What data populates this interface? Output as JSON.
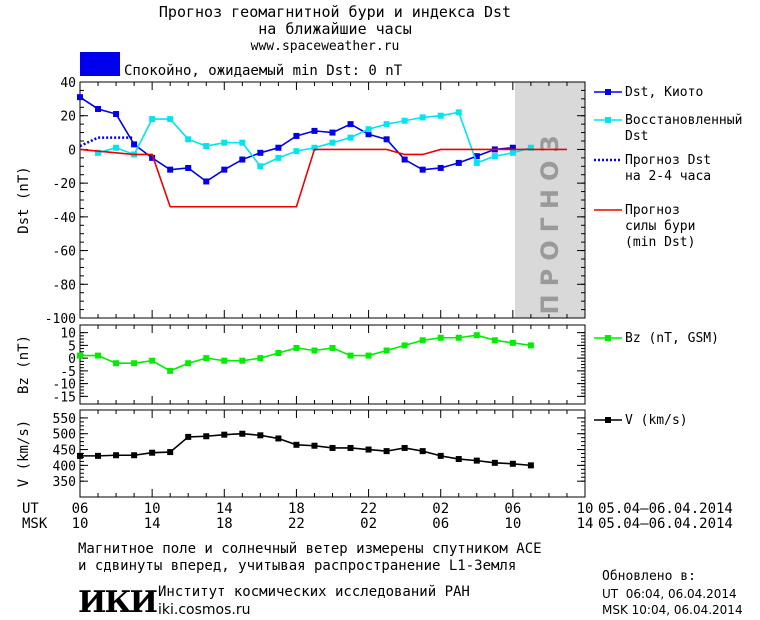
{
  "header": {
    "title_line1": "Прогноз геомагнитной бури и индекса Dst",
    "title_line2": "на ближайшие часы",
    "url": "www.spaceweather.ru",
    "status_text": "Спокойно, ожидаемый min Dst: 0 nT",
    "status_color": "#0000ee"
  },
  "forecast_label": "ПРОГНОЗ",
  "footer": {
    "note_line1": "Магнитное поле и солнечный ветер измерены спутником ACE",
    "note_line2": "и сдвинуты вперед, учитывая распространение L1-Земля",
    "logo_text": "ИКИ",
    "institute_name": "Институт космических исследований РАН",
    "institute_url": "iki.cosmos.ru",
    "updated_label": "Обновлено в:",
    "updated_ut": "UT  06:04, 06.04.2014",
    "updated_msk": "MSK 10:04, 06.04.2014"
  },
  "chart_data": [
    {
      "type": "line",
      "ylabel": "Dst (nT)",
      "ylim": [
        -100,
        40
      ],
      "yticks": [
        40,
        20,
        0,
        -20,
        -40,
        -60,
        -80,
        -100
      ],
      "grid": false,
      "legend_position": "right",
      "series": [
        {
          "name": "Dst, Киото",
          "color": "#0000ee",
          "marker": "square",
          "x": [
            6,
            7,
            8,
            9,
            10,
            11,
            12,
            13,
            14,
            15,
            16,
            17,
            18,
            19,
            20,
            21,
            22,
            23,
            0,
            1,
            2,
            3,
            4,
            5,
            6
          ],
          "values": [
            31,
            24,
            21,
            3,
            -5,
            -12,
            -11,
            -19,
            -12,
            -6,
            -2,
            1,
            8,
            11,
            10,
            15,
            9,
            6,
            -6,
            -12,
            -11,
            -8,
            -4,
            0,
            1
          ]
        },
        {
          "name": "Восстановленный Dst",
          "color": "#00e5ee",
          "marker": "square",
          "x": [
            7,
            8,
            9,
            10,
            11,
            12,
            13,
            14,
            15,
            16,
            17,
            18,
            19,
            20,
            21,
            22,
            23,
            0,
            1,
            2,
            3,
            4,
            5,
            6,
            7
          ],
          "values": [
            -2,
            1,
            -3,
            18,
            18,
            6,
            2,
            4,
            4,
            -10,
            -5,
            -1,
            1,
            4,
            7,
            12,
            15,
            17,
            19,
            20,
            22,
            -8,
            -4,
            -2,
            1
          ]
        },
        {
          "name": "Прогноз Dst на 2-4 часа",
          "color": "#0000ee",
          "style": "dotted",
          "x": [
            6,
            7,
            8,
            9
          ],
          "values": [
            2,
            7,
            7,
            7
          ]
        },
        {
          "name": "Прогноз силы бури (min Dst)",
          "color": "#ee0000",
          "x": [
            6,
            9,
            10,
            11,
            12,
            13,
            14,
            15,
            16,
            17,
            18,
            19,
            20,
            21,
            22,
            23,
            0,
            1,
            2,
            3,
            4,
            5,
            6,
            7,
            8,
            9
          ],
          "values": [
            0,
            -3,
            -3,
            -34,
            -34,
            -34,
            -34,
            -34,
            -34,
            -34,
            -34,
            0,
            0,
            0,
            0,
            0,
            -3,
            -3,
            0,
            0,
            0,
            0,
            0,
            0,
            0,
            0
          ]
        }
      ]
    },
    {
      "type": "line",
      "ylabel": "Bz (nT)",
      "ylim": [
        -18,
        13
      ],
      "yticks": [
        10,
        5,
        0,
        -5,
        -10,
        -15
      ],
      "legend_position": "right",
      "series": [
        {
          "name": "Bz (nT, GSM)",
          "color": "#00ee00",
          "marker": "square",
          "x": [
            6,
            7,
            8,
            9,
            10,
            11,
            12,
            13,
            14,
            15,
            16,
            17,
            18,
            19,
            20,
            21,
            22,
            23,
            0,
            1,
            2,
            3,
            4,
            5,
            6,
            7
          ],
          "values": [
            1,
            1,
            -2,
            -2,
            -1,
            -5,
            -2,
            0,
            -1,
            -1,
            0,
            2,
            4,
            3,
            4,
            1,
            1,
            3,
            5,
            7,
            8,
            8,
            9,
            7,
            6,
            5
          ]
        }
      ]
    },
    {
      "type": "line",
      "ylabel": "V (km/s)",
      "ylim": [
        300,
        575
      ],
      "yticks": [
        550,
        500,
        450,
        400,
        350
      ],
      "legend_position": "right",
      "series": [
        {
          "name": "V (km/s)",
          "color": "#000000",
          "marker": "square",
          "x": [
            6,
            7,
            8,
            9,
            10,
            11,
            12,
            13,
            14,
            15,
            16,
            17,
            18,
            19,
            20,
            21,
            22,
            23,
            0,
            1,
            2,
            3,
            4,
            5,
            6,
            7
          ],
          "values": [
            430,
            430,
            432,
            432,
            440,
            442,
            490,
            492,
            497,
            500,
            495,
            485,
            465,
            462,
            455,
            455,
            450,
            445,
            455,
            445,
            430,
            420,
            415,
            408,
            405,
            400
          ]
        }
      ]
    },
    {
      "type": "axis",
      "ut_ticks": [
        "06",
        "10",
        "14",
        "18",
        "22",
        "02",
        "06",
        "10"
      ],
      "msk_ticks": [
        "10",
        "14",
        "18",
        "22",
        "02",
        "06",
        "10",
        "14"
      ],
      "ut_label": "UT",
      "msk_label": "MSK",
      "date_range_ut": "05.04–06.04.2014",
      "date_range_msk": "05.04–06.04.2014"
    }
  ]
}
